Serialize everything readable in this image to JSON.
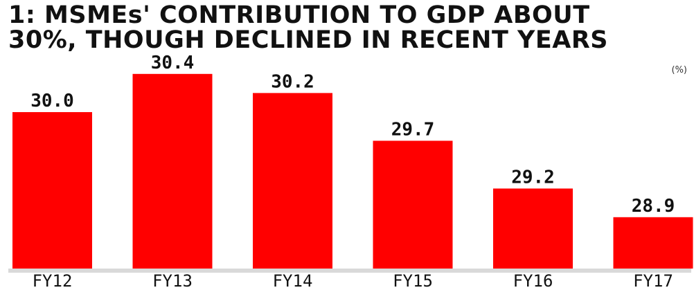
{
  "chart_data": {
    "type": "bar",
    "title": [
      "1: MSMEs' CONTRIBUTION TO GDP ABOUT",
      "30%, THOUGH DECLINED IN RECENT YEARS"
    ],
    "unit": "(%)",
    "categories": [
      "FY12",
      "FY13",
      "FY14",
      "FY15",
      "FY16",
      "FY17"
    ],
    "values": [
      30.0,
      30.4,
      30.2,
      29.7,
      29.2,
      28.9
    ],
    "value_labels": [
      "30.0",
      "30.4",
      "30.2",
      "29.7",
      "29.2",
      "28.9"
    ],
    "bar_color": "#ff0000",
    "baseline_color": "#d9d9d9",
    "xlabel": "",
    "ylabel": "",
    "grid": false
  }
}
